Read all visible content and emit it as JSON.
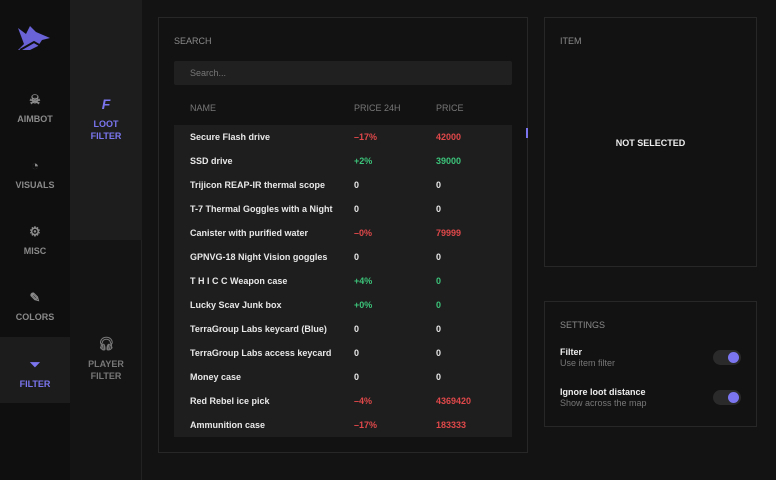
{
  "accent": "#7b76f0",
  "nav": [
    {
      "label": "AIMBOT",
      "icon": "skull-icon"
    },
    {
      "label": "VISUALS",
      "icon": "visuals-icon"
    },
    {
      "label": "MISC",
      "icon": "gear-icon"
    },
    {
      "label": "COLORS",
      "icon": "eyedropper-icon"
    },
    {
      "label": "FILTER",
      "icon": "funnel-icon",
      "active": true
    }
  ],
  "subnav": [
    {
      "line1": "LOOT",
      "line2": "FILTER",
      "icon": "loot-icon",
      "active": true
    },
    {
      "line1": "PLAYER",
      "line2": "FILTER",
      "icon": "headphones-icon"
    }
  ],
  "search": {
    "title": "SEARCH",
    "placeholder": "Search...",
    "columns": [
      "NAME",
      "PRICE 24H",
      "PRICE"
    ],
    "rows": [
      [
        "Secure Flash drive",
        "–17%",
        "42000",
        "neg"
      ],
      [
        "SSD drive",
        "+2%",
        "39000",
        "pos"
      ],
      [
        "Trijicon REAP-IR thermal scope",
        "0",
        "0",
        ""
      ],
      [
        "T-7 Thermal Goggles with a Night",
        "0",
        "0",
        ""
      ],
      [
        "Canister with purified water",
        "–0%",
        "79999",
        "neg"
      ],
      [
        "GPNVG-18 Night Vision goggles",
        "0",
        "0",
        ""
      ],
      [
        "T H I C C Weapon case",
        "+4%",
        "0",
        "pos"
      ],
      [
        "Lucky Scav Junk box",
        "+0%",
        "0",
        "pos"
      ],
      [
        "TerraGroup Labs keycard (Blue)",
        "0",
        "0",
        ""
      ],
      [
        "TerraGroup Labs access keycard",
        "0",
        "0",
        ""
      ],
      [
        "Money case",
        "0",
        "0",
        ""
      ],
      [
        "Red Rebel ice pick",
        "–4%",
        "4369420",
        "neg"
      ],
      [
        "Ammunition case",
        "–17%",
        "183333",
        "neg"
      ]
    ]
  },
  "item": {
    "title": "ITEM",
    "empty": "NOT SELECTED"
  },
  "settings": {
    "title": "SETTINGS",
    "items": [
      {
        "label": "Filter",
        "desc": "Use item filter",
        "on": true
      },
      {
        "label": "Ignore loot distance",
        "desc": "Show across the map",
        "on": true
      }
    ]
  }
}
